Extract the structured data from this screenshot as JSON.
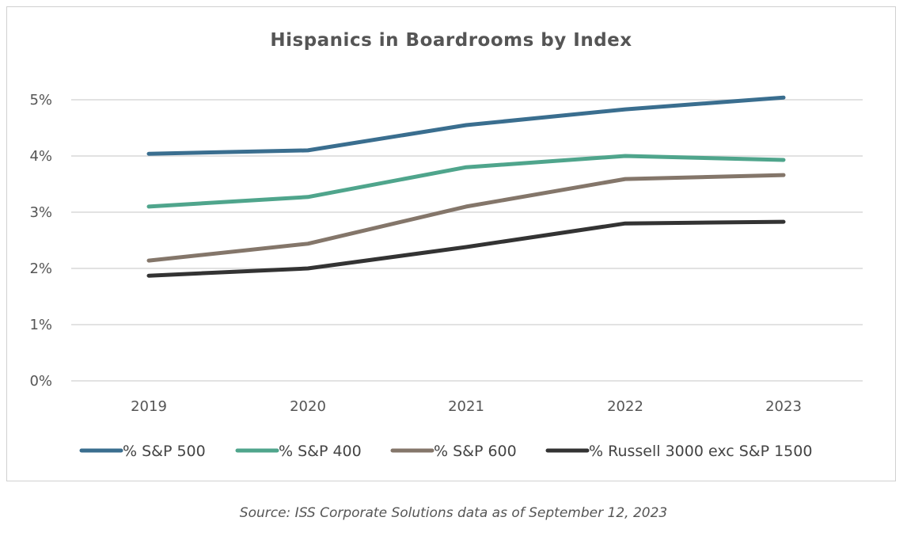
{
  "chart_data": {
    "type": "line",
    "title": "Hispanics in Boardrooms by Index",
    "categories": [
      "2019",
      "2020",
      "2021",
      "2022",
      "2023"
    ],
    "ylim": [
      0,
      5
    ],
    "yticks": [
      "0%",
      "1%",
      "2%",
      "3%",
      "4%",
      "5%"
    ],
    "grid": true,
    "legend_position": "bottom",
    "series": [
      {
        "name": "% S&P 500",
        "color": "#3a6e8f",
        "values": [
          4.04,
          4.1,
          4.55,
          4.83,
          5.04
        ]
      },
      {
        "name": "% S&P 400",
        "color": "#4fa58c",
        "values": [
          3.1,
          3.27,
          3.8,
          4.0,
          3.93
        ]
      },
      {
        "name": "% S&P 600",
        "color": "#84766a",
        "values": [
          2.14,
          2.44,
          3.1,
          3.59,
          3.66
        ]
      },
      {
        "name": "% Russell 3000 exc S&P 1500",
        "color": "#333333",
        "values": [
          1.87,
          2.0,
          2.38,
          2.8,
          2.83
        ]
      }
    ]
  },
  "source": "Source: ISS Corporate Solutions data as of September 12, 2023"
}
